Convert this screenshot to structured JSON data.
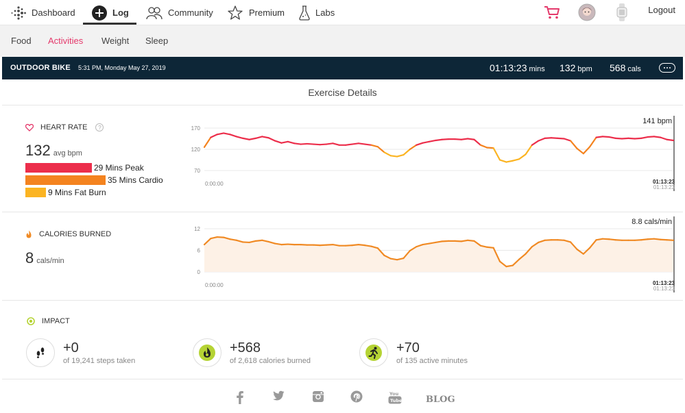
{
  "nav": {
    "dashboard": "Dashboard",
    "log": "Log",
    "community": "Community",
    "premium": "Premium",
    "labs": "Labs",
    "logout": "Logout"
  },
  "subnav": {
    "food": "Food",
    "activities": "Activities",
    "weight": "Weight",
    "sleep": "Sleep"
  },
  "activity": {
    "title": "OUTDOOR BIKE",
    "datetime": "5:31 PM, Monday May 27, 2019",
    "duration": "01:13:23",
    "duration_unit": "mins",
    "bpm": "132",
    "bpm_unit": "bpm",
    "cals": "568",
    "cals_unit": "cals"
  },
  "section_title": "Exercise Details",
  "heart_rate": {
    "label": "HEART RATE",
    "help": "?",
    "avg": "132",
    "avg_unit": "avg bpm",
    "zones": [
      {
        "label": "29 Mins Peak",
        "color": "#ec2e4b",
        "minutes": 29
      },
      {
        "label": "35 Mins Cardio",
        "color": "#f4831f",
        "minutes": 35
      },
      {
        "label": "9 Mins Fat Burn",
        "color": "#fbb422",
        "minutes": 9
      }
    ]
  },
  "calories": {
    "label": "CALORIES BURNED",
    "value": "8",
    "unit": "cals/min"
  },
  "chart_data": [
    {
      "type": "line",
      "title": "",
      "xlabel": "",
      "ylabel": "",
      "y_ticks": [
        "170",
        "120",
        "70"
      ],
      "ylim": [
        70,
        170
      ],
      "x_start_label": "0:00:00",
      "x_end_label": "01:13:23",
      "x_end_label_secondary": "01:13:23",
      "current_value_label": "141 bpm",
      "grid": true,
      "series": [
        {
          "x": [
            0,
            1,
            2,
            3,
            4,
            5,
            6,
            7,
            8,
            9,
            10,
            11,
            12,
            13,
            14,
            15,
            16,
            17,
            18,
            19,
            20,
            21,
            22,
            23,
            24,
            25,
            26,
            27,
            28,
            29,
            30,
            31,
            32,
            33,
            34,
            35,
            36,
            37,
            38,
            39,
            40,
            41,
            42,
            43,
            44,
            45,
            46,
            47,
            48,
            49,
            50,
            51,
            52,
            53,
            54,
            55,
            56,
            57,
            58,
            59,
            60,
            61,
            62,
            63,
            64,
            65,
            66,
            67,
            68,
            69,
            70,
            71,
            72,
            73
          ],
          "values": [
            125,
            148,
            155,
            158,
            155,
            150,
            146,
            143,
            146,
            150,
            147,
            140,
            135,
            138,
            134,
            132,
            133,
            132,
            131,
            132,
            134,
            130,
            130,
            132,
            134,
            132,
            130,
            126,
            113,
            105,
            103,
            107,
            120,
            130,
            135,
            138,
            141,
            143,
            144,
            144,
            143,
            145,
            143,
            130,
            124,
            123,
            95,
            90,
            93,
            97,
            108,
            130,
            140,
            146,
            147,
            146,
            145,
            140,
            122,
            110,
            126,
            148,
            150,
            149,
            146,
            145,
            146,
            145,
            146,
            149,
            150,
            148,
            143,
            141
          ]
        }
      ]
    },
    {
      "type": "area",
      "title": "",
      "xlabel": "",
      "ylabel": "",
      "y_ticks": [
        "12",
        "6",
        "0"
      ],
      "ylim": [
        0,
        12
      ],
      "x_start_label": "0:00:00",
      "x_end_label": "01:13:23",
      "x_end_label_secondary": "01:13:23",
      "current_value_label": "8.8 cals/min",
      "grid": true,
      "series": [
        {
          "x": [
            0,
            1,
            2,
            3,
            4,
            5,
            6,
            7,
            8,
            9,
            10,
            11,
            12,
            13,
            14,
            15,
            16,
            17,
            18,
            19,
            20,
            21,
            22,
            23,
            24,
            25,
            26,
            27,
            28,
            29,
            30,
            31,
            32,
            33,
            34,
            35,
            36,
            37,
            38,
            39,
            40,
            41,
            42,
            43,
            44,
            45,
            46,
            47,
            48,
            49,
            50,
            51,
            52,
            53,
            54,
            55,
            56,
            57,
            58,
            59,
            60,
            61,
            62,
            63,
            64,
            65,
            66,
            67,
            68,
            69,
            70,
            71,
            72,
            73
          ],
          "values": [
            7.6,
            9.3,
            9.7,
            9.6,
            9.1,
            8.8,
            8.3,
            8.2,
            8.6,
            8.8,
            8.4,
            7.9,
            7.6,
            7.7,
            7.6,
            7.6,
            7.5,
            7.5,
            7.4,
            7.5,
            7.6,
            7.3,
            7.3,
            7.4,
            7.6,
            7.4,
            7.1,
            6.6,
            4.6,
            3.7,
            3.4,
            3.8,
            5.9,
            7.0,
            7.6,
            7.9,
            8.2,
            8.5,
            8.6,
            8.6,
            8.5,
            8.8,
            8.6,
            7.3,
            6.9,
            6.7,
            2.9,
            1.5,
            1.8,
            3.5,
            5.0,
            7.0,
            8.2,
            8.8,
            8.9,
            8.9,
            8.8,
            8.3,
            6.3,
            5.0,
            6.7,
            8.9,
            9.2,
            9.1,
            8.9,
            8.8,
            8.8,
            8.8,
            8.9,
            9.1,
            9.2,
            9.0,
            8.9,
            8.8
          ]
        }
      ]
    }
  ],
  "impact": {
    "label": "IMPACT",
    "items": [
      {
        "value": "+0",
        "sub": "of 19,241 steps taken"
      },
      {
        "value": "+568",
        "sub": "of 2,618 calories burned"
      },
      {
        "value": "+70",
        "sub": "of 135 active minutes"
      }
    ]
  },
  "footer": {
    "blog": "BLOG"
  },
  "colors": {
    "accent_pink": "#e4396b",
    "header_navy": "#0d2637",
    "peak": "#ec2e4b",
    "cardio": "#f4831f",
    "fatburn": "#fbb422",
    "calorie_line": "#f08a24",
    "active_green": "#b5d334"
  }
}
